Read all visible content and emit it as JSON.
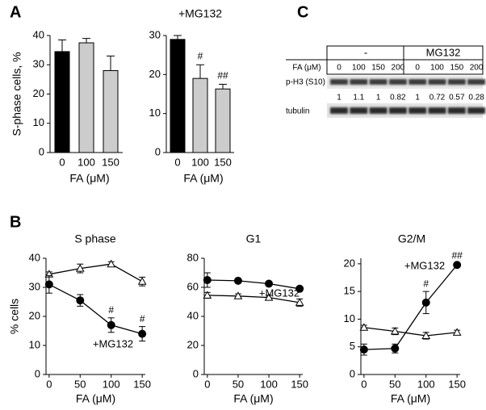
{
  "panels": {
    "a": "A",
    "b": "B",
    "c": "C"
  },
  "chart_data": [
    {
      "type": "bar",
      "categories": [
        "0",
        "100",
        "150"
      ],
      "values": [
        34.5,
        37.5,
        28
      ],
      "errors": [
        4,
        1.5,
        5
      ],
      "colors": [
        "#000000",
        "#cccccc",
        "#cccccc"
      ],
      "ylim": [
        0,
        40
      ],
      "yticks": [
        0,
        10,
        20,
        30,
        40
      ],
      "y_label": "S-phase cells, %",
      "x_label": "FA (μM)"
    },
    {
      "type": "bar",
      "title": "+MG132",
      "categories": [
        "0",
        "100",
        "150"
      ],
      "values": [
        29,
        19,
        16.3
      ],
      "errors": [
        1,
        3.5,
        1.2
      ],
      "annotations": [
        null,
        "#",
        "##"
      ],
      "colors": [
        "#000000",
        "#cccccc",
        "#cccccc"
      ],
      "ylim": [
        0,
        30
      ],
      "yticks": [
        0,
        10,
        20,
        30
      ],
      "x_label": "FA (μM)"
    },
    {
      "type": "line",
      "title": "S phase",
      "y_label": "% cells",
      "x_label": "FA (μM)",
      "x": [
        0,
        50,
        100,
        150
      ],
      "xlim": [
        -5,
        155
      ],
      "xticks": [
        0,
        50,
        100,
        150
      ],
      "ylim": [
        0,
        40
      ],
      "yticks": [
        0,
        10,
        20,
        30,
        40
      ],
      "series": [
        {
          "marker": "triangle",
          "color": "#000000",
          "values": [
            34.5,
            36.5,
            38,
            32
          ],
          "errors": [
            0.8,
            1.5,
            0.8,
            1.5
          ]
        },
        {
          "name": "+MG132",
          "marker": "circle",
          "color": "#000000",
          "values": [
            31,
            25.5,
            17,
            14
          ],
          "errors": [
            3,
            2,
            2.5,
            2.5
          ],
          "annotations": [
            null,
            null,
            "#",
            "#"
          ]
        }
      ]
    },
    {
      "type": "line",
      "title": "G1",
      "x_label": "FA (μM)",
      "x": [
        0,
        50,
        100,
        150
      ],
      "xlim": [
        -5,
        155
      ],
      "xticks": [
        0,
        50,
        100,
        150
      ],
      "ylim": [
        0,
        80
      ],
      "yticks": [
        0,
        20,
        40,
        60,
        80
      ],
      "series": [
        {
          "marker": "triangle",
          "color": "#000000",
          "values": [
            54.5,
            54,
            53,
            49.5
          ],
          "errors": [
            2,
            1.5,
            1.5,
            2.5
          ]
        },
        {
          "name": "+MG132",
          "marker": "circle",
          "color": "#000000",
          "values": [
            65,
            64.5,
            62.5,
            59
          ],
          "errors": [
            5,
            1.5,
            1.5,
            1
          ]
        }
      ]
    },
    {
      "type": "line",
      "title": "G2/M",
      "x_label": "FA (μM)",
      "x": [
        0,
        50,
        100,
        150
      ],
      "xlim": [
        -5,
        155
      ],
      "xticks": [
        0,
        50,
        100,
        150
      ],
      "ylim": [
        0,
        21
      ],
      "yticks": [
        0,
        5,
        10,
        15,
        20
      ],
      "series": [
        {
          "marker": "triangle",
          "color": "#000000",
          "values": [
            8.5,
            7.8,
            7,
            7.6
          ],
          "errors": [
            0.4,
            0.6,
            0.6,
            0.4
          ]
        },
        {
          "name": "+MG132",
          "marker": "circle",
          "color": "#000000",
          "values": [
            4.5,
            4.7,
            13,
            19.8
          ],
          "errors": [
            1,
            0.8,
            2,
            0.3
          ],
          "annotations": [
            null,
            null,
            "#",
            "##"
          ]
        }
      ]
    }
  ],
  "blot": {
    "groups": [
      "-",
      "MG132"
    ],
    "lane_label": "FA (μM)",
    "lanes": [
      "0",
      "100",
      "150",
      "200",
      "0",
      "100",
      "150",
      "200"
    ],
    "rows": [
      "p-H3 (S10)",
      "tubulin"
    ],
    "quantification": [
      "1",
      "1.1",
      "1",
      "0.82",
      "1",
      "0.72",
      "0.57",
      "0.28"
    ]
  }
}
